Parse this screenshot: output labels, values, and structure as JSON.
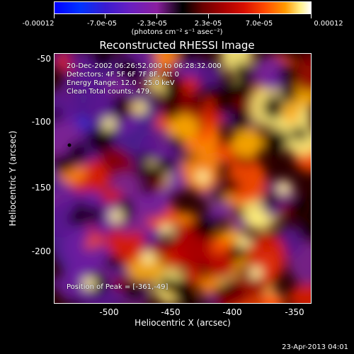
{
  "colorbar": {
    "labels": [
      "-0.00012",
      "-7.0e-05",
      "-2.3e-05",
      "2.3e-05",
      "7.0e-05",
      "0.00012"
    ],
    "units_label": "(photons cm⁻² s⁻¹ asec⁻²)"
  },
  "title": "Reconstructed RHESSI Image",
  "annotations": {
    "time_range": "20-Dec-2002 06:26:52.000 to 06:28:32.000",
    "detectors": "Detectors: 4F 5F 6F 7F 8F, Att 0",
    "energy_range": "Energy Range: 12.0 - 25.0 keV",
    "clean": "Clean     Total counts: 479.",
    "peak_position": "Position of Peak = [-361,-49]"
  },
  "axes": {
    "xlabel": "Heliocentric X (arcsec)",
    "ylabel": "Heliocentric Y (arcsec)",
    "xticks": [
      "-500",
      "-450",
      "-400",
      "-350"
    ],
    "yticks": [
      "-50",
      "-100",
      "-150",
      "-200"
    ]
  },
  "footer": {
    "date": "23-Apr-2013 04:01"
  },
  "chart_data": {
    "type": "heatmap",
    "title": "Reconstructed RHESSI Image",
    "xlabel": "Heliocentric X (arcsec)",
    "ylabel": "Heliocentric Y (arcsec)",
    "xlim": [
      -547,
      -347
    ],
    "ylim": [
      -246,
      -46
    ],
    "xticks": [
      -500,
      -450,
      -400,
      -350
    ],
    "yticks": [
      -50,
      -100,
      -150,
      -200
    ],
    "colorbar_range": [
      -0.00012,
      0.00012
    ],
    "colorbar_ticks": [
      -0.00012,
      -7e-05,
      -2.3e-05,
      2.3e-05,
      7e-05,
      0.00012
    ],
    "peak_position": [
      -361,
      -49
    ]
  }
}
